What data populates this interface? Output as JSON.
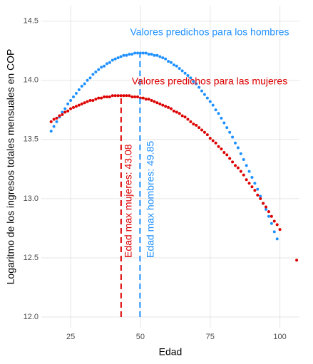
{
  "chart_data": {
    "type": "scatter",
    "xlabel": "Edad",
    "ylabel": "Logaritmo de los ingresos totales mensuales en COP",
    "xlim": [
      14.5,
      107
    ],
    "ylim": [
      11.91,
      14.63
    ],
    "xticks": [
      25,
      50,
      75,
      100
    ],
    "yticks": [
      {
        "value": 12.0,
        "label": "12.0"
      },
      12.5,
      {
        "value": 13.0,
        "label": "13.0"
      },
      13.5,
      {
        "value": 14.0,
        "label": "14.0"
      },
      14.5
    ],
    "grid": true,
    "series": [
      {
        "name": "Valores predichos para los hombres",
        "color": "#1e90ff",
        "x": [
          18,
          19,
          20,
          21,
          22,
          23,
          24,
          25,
          26,
          27,
          28,
          29,
          30,
          31,
          32,
          33,
          34,
          35,
          36,
          37,
          38,
          39,
          40,
          41,
          42,
          43,
          44,
          45,
          46,
          47,
          48,
          49,
          50,
          51,
          52,
          53,
          54,
          55,
          56,
          57,
          58,
          59,
          60,
          61,
          62,
          63,
          64,
          65,
          66,
          67,
          68,
          69,
          70,
          71,
          72,
          73,
          74,
          75,
          76,
          77,
          78,
          79,
          80,
          81,
          82,
          83,
          84,
          85,
          86,
          87,
          88,
          89,
          90,
          91,
          92,
          93,
          94,
          95,
          96,
          97,
          98,
          99
        ],
        "values": [
          13.57,
          13.61,
          13.65,
          13.69,
          13.73,
          13.76,
          13.8,
          13.83,
          13.86,
          13.89,
          13.92,
          13.95,
          13.97,
          14.0,
          14.02,
          14.05,
          14.07,
          14.09,
          14.11,
          14.12,
          14.14,
          14.15,
          14.17,
          14.18,
          14.19,
          14.2,
          14.21,
          14.21,
          14.22,
          14.22,
          14.23,
          14.23,
          14.23,
          14.23,
          14.23,
          14.22,
          14.22,
          14.21,
          14.21,
          14.2,
          14.19,
          14.18,
          14.16,
          14.15,
          14.13,
          14.12,
          14.1,
          14.08,
          14.06,
          14.04,
          14.02,
          13.99,
          13.97,
          13.94,
          13.91,
          13.88,
          13.85,
          13.82,
          13.79,
          13.75,
          13.72,
          13.68,
          13.64,
          13.6,
          13.56,
          13.52,
          13.47,
          13.43,
          13.38,
          13.33,
          13.28,
          13.23,
          13.18,
          13.13,
          13.08,
          13.02,
          12.96,
          12.91,
          12.85,
          12.79,
          12.72,
          12.66
        ]
      },
      {
        "name": "Valores predichos para las mujeres",
        "color": "#dd0000",
        "x": [
          18,
          19,
          20,
          21,
          22,
          23,
          24,
          25,
          26,
          27,
          28,
          29,
          30,
          31,
          32,
          33,
          34,
          35,
          36,
          37,
          38,
          39,
          40,
          41,
          42,
          43,
          44,
          45,
          46,
          47,
          48,
          49,
          50,
          51,
          52,
          53,
          54,
          55,
          56,
          57,
          58,
          59,
          60,
          61,
          62,
          63,
          64,
          65,
          66,
          67,
          68,
          69,
          70,
          71,
          72,
          73,
          74,
          75,
          76,
          77,
          78,
          79,
          80,
          81,
          82,
          83,
          84,
          85,
          86,
          87,
          88,
          89,
          90,
          91,
          92,
          93,
          94,
          95,
          96,
          97,
          98,
          99,
          100,
          106
        ],
        "values": [
          13.65,
          13.67,
          13.68,
          13.7,
          13.71,
          13.73,
          13.74,
          13.76,
          13.77,
          13.78,
          13.79,
          13.8,
          13.81,
          13.82,
          13.83,
          13.83,
          13.84,
          13.85,
          13.85,
          13.86,
          13.86,
          13.86,
          13.87,
          13.87,
          13.87,
          13.87,
          13.87,
          13.87,
          13.87,
          13.86,
          13.86,
          13.86,
          13.85,
          13.85,
          13.84,
          13.84,
          13.83,
          13.82,
          13.81,
          13.8,
          13.79,
          13.78,
          13.77,
          13.76,
          13.74,
          13.73,
          13.72,
          13.7,
          13.69,
          13.67,
          13.65,
          13.63,
          13.62,
          13.6,
          13.58,
          13.56,
          13.54,
          13.51,
          13.49,
          13.47,
          13.44,
          13.42,
          13.39,
          13.37,
          13.34,
          13.31,
          13.28,
          13.26,
          13.23,
          13.2,
          13.16,
          13.13,
          13.1,
          13.07,
          13.03,
          13.0,
          12.96,
          12.93,
          12.89,
          12.85,
          12.81,
          12.78,
          12.74,
          12.48
        ]
      }
    ],
    "vlines": [
      {
        "x": 43.08,
        "ymin": 12.0,
        "ymax": 13.87,
        "color": "#dd0000",
        "label": "Edad max mujeres: 43.08"
      },
      {
        "x": 49.85,
        "ymin": 12.0,
        "ymax": 14.23,
        "color": "#1e90ff",
        "label": "Edad max hombres: 49.85"
      }
    ]
  }
}
